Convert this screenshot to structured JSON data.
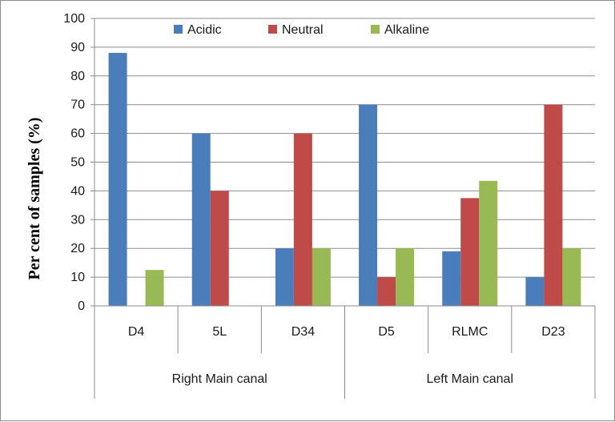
{
  "chart_data": {
    "type": "bar",
    "title": "",
    "xlabel": "",
    "ylabel": "Per cent of  samples (%)",
    "ylim": [
      0,
      100
    ],
    "yticks": [
      0,
      10,
      20,
      30,
      40,
      50,
      60,
      70,
      80,
      90,
      100
    ],
    "grid": true,
    "legend_position": "top",
    "categories": [
      "D4",
      "5L",
      "D34",
      "D5",
      "RLMC",
      "D23"
    ],
    "groups": [
      {
        "label": "Right Main canal",
        "categories": [
          "D4",
          "5L",
          "D34"
        ]
      },
      {
        "label": "Left Main canal",
        "categories": [
          "D5",
          "RLMC",
          "D23"
        ]
      }
    ],
    "series": [
      {
        "name": "Acidic",
        "color": "#4a7ebb",
        "values": [
          88,
          60,
          20,
          70,
          19,
          10
        ]
      },
      {
        "name": "Neutral",
        "color": "#be4b48",
        "values": [
          0,
          40,
          60,
          10,
          37.5,
          70
        ]
      },
      {
        "name": "Alkaline",
        "color": "#98b954",
        "values": [
          12.5,
          0,
          20,
          20,
          43.5,
          20
        ]
      }
    ]
  }
}
